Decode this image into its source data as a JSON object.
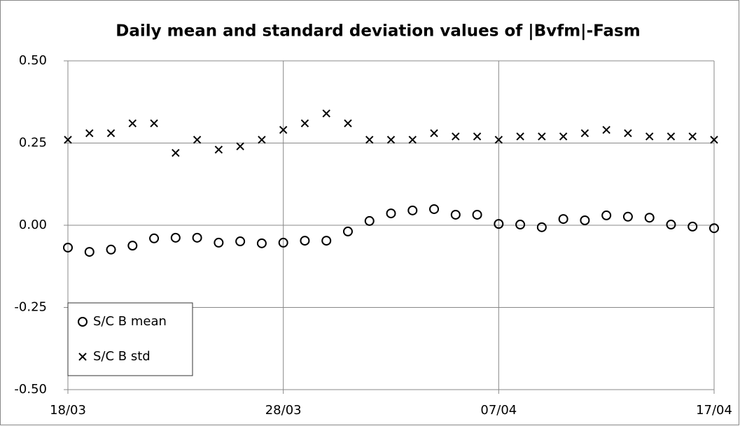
{
  "chart_data": {
    "type": "scatter",
    "title": "Daily mean and standard deviation values of |Bvfm|-Fasm",
    "categories": [
      "18/03",
      null,
      null,
      null,
      null,
      null,
      null,
      null,
      null,
      null,
      "28/03",
      null,
      null,
      null,
      null,
      null,
      null,
      null,
      null,
      null,
      "07/04",
      null,
      null,
      null,
      null,
      null,
      null,
      null,
      null,
      null,
      "17/04"
    ],
    "series": [
      {
        "name": "S/C B mean",
        "color": "#000000",
        "marker": "circle",
        "values": [
          -0.068,
          -0.081,
          -0.074,
          -0.062,
          -0.04,
          -0.038,
          -0.038,
          -0.053,
          -0.049,
          -0.055,
          -0.053,
          -0.047,
          -0.047,
          -0.019,
          0.013,
          0.036,
          0.045,
          0.049,
          0.032,
          0.032,
          0.004,
          0.002,
          -0.006,
          0.019,
          0.015,
          0.03,
          0.026,
          0.023,
          0.002,
          -0.004,
          -0.009
        ]
      },
      {
        "name": "S/C B std",
        "color": "#000000",
        "marker": "cross",
        "values": [
          0.26,
          0.28,
          0.28,
          0.31,
          0.31,
          0.22,
          0.26,
          0.23,
          0.24,
          0.26,
          0.29,
          0.31,
          0.34,
          0.31,
          0.26,
          0.26,
          0.26,
          0.28,
          0.27,
          0.27,
          0.26,
          0.27,
          0.27,
          0.27,
          0.28,
          0.29,
          0.28,
          0.27,
          0.27,
          0.27,
          0.26
        ]
      }
    ],
    "ylim": [
      -0.5,
      0.5
    ],
    "yticks": [
      {
        "value": -0.5,
        "label": "-0.50"
      },
      {
        "value": -0.25,
        "label": "-0.25"
      },
      {
        "value": 0,
        "label": "0.00"
      },
      {
        "value": 0.25,
        "label": "0.25"
      },
      {
        "value": 0.5,
        "label": "0.50"
      }
    ],
    "grid": true,
    "legend": "lower left"
  }
}
